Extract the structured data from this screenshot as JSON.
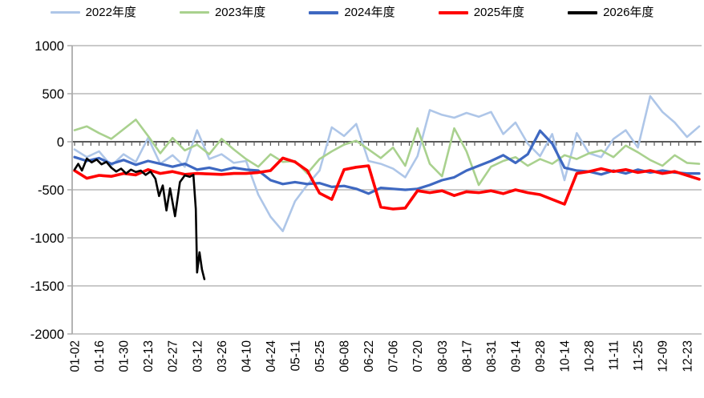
{
  "chart_data": {
    "type": "line",
    "title": "",
    "xlabel": "",
    "ylabel": "",
    "x_axis_labels": [
      "01-02",
      "01-16",
      "01-30",
      "02-13",
      "02-27",
      "03-12",
      "03-26",
      "04-10",
      "04-24",
      "05-11",
      "05-25",
      "06-08",
      "06-22",
      "07-06",
      "07-20",
      "08-03",
      "08-17",
      "08-31",
      "09-14",
      "09-28",
      "10-14",
      "10-28",
      "11-11",
      "11-25",
      "12-09",
      "12-23"
    ],
    "x_unit": "label-index (0 = 01-02, one unit = one tick, values sampled every 0.5)",
    "ylim": [
      -2000,
      1000
    ],
    "yticks": [
      1000,
      500,
      0,
      -500,
      -1000,
      -1500,
      -2000
    ],
    "grid": true,
    "zero_axis_color": "#595959",
    "grid_color": "#ababab",
    "legend_position": "top",
    "series": [
      {
        "name": "2022年度",
        "color": "#AEC6E8",
        "values": [
          -80,
          -160,
          -100,
          -250,
          -130,
          -210,
          40,
          -230,
          -140,
          -260,
          120,
          -180,
          -130,
          -220,
          -200,
          -550,
          -780,
          -930,
          -620,
          -450,
          -300,
          150,
          60,
          185,
          -200,
          -230,
          -280,
          -370,
          -150,
          330,
          280,
          250,
          300,
          260,
          310,
          80,
          200,
          -20,
          -150,
          80,
          -400,
          90,
          -120,
          -160,
          30,
          120,
          -60,
          475,
          310,
          200,
          50,
          160
        ]
      },
      {
        "name": "2023年度",
        "color": "#A9D18E",
        "values": [
          120,
          160,
          90,
          30,
          130,
          230,
          60,
          -120,
          40,
          -90,
          -30,
          -130,
          30,
          -80,
          -180,
          -260,
          -130,
          -210,
          -200,
          -330,
          -180,
          -100,
          -30,
          10,
          -80,
          -170,
          -60,
          -250,
          140,
          -230,
          -360,
          140,
          -100,
          -450,
          -260,
          -200,
          -160,
          -250,
          -180,
          -230,
          -140,
          -180,
          -120,
          -90,
          -160,
          -40,
          -110,
          -190,
          -250,
          -140,
          -220,
          -230
        ]
      },
      {
        "name": "2024年度",
        "color": "#3E68C1",
        "values": [
          -160,
          -200,
          -170,
          -230,
          -190,
          -240,
          -200,
          -230,
          -260,
          -230,
          -290,
          -270,
          -300,
          -270,
          -290,
          -300,
          -400,
          -440,
          -420,
          -440,
          -430,
          -470,
          -460,
          -490,
          -540,
          -480,
          -490,
          -500,
          -490,
          -450,
          -400,
          -370,
          -300,
          -250,
          -200,
          -140,
          -220,
          -130,
          115,
          -20,
          -270,
          -300,
          -310,
          -340,
          -300,
          -330,
          -290,
          -320,
          -300,
          -320,
          -330,
          -330
        ]
      },
      {
        "name": "2025年度",
        "color": "#FF0000",
        "values": [
          -300,
          -380,
          -350,
          -360,
          -330,
          -345,
          -290,
          -330,
          -310,
          -340,
          -330,
          -335,
          -340,
          -330,
          -330,
          -320,
          -300,
          -170,
          -210,
          -300,
          -535,
          -600,
          -290,
          -265,
          -250,
          -680,
          -700,
          -690,
          -510,
          -530,
          -510,
          -560,
          -520,
          -530,
          -510,
          -540,
          -500,
          -530,
          -550,
          -600,
          -650,
          -330,
          -310,
          -280,
          -310,
          -290,
          -320,
          -300,
          -330,
          -310,
          -350,
          -390
        ]
      },
      {
        "name": "2026年度",
        "color": "#000000",
        "points": [
          [
            0,
            -290
          ],
          [
            0.15,
            -230
          ],
          [
            0.3,
            -300
          ],
          [
            0.5,
            -175
          ],
          [
            0.7,
            -215
          ],
          [
            0.9,
            -185
          ],
          [
            1.1,
            -235
          ],
          [
            1.3,
            -210
          ],
          [
            1.5,
            -270
          ],
          [
            1.7,
            -310
          ],
          [
            1.9,
            -280
          ],
          [
            2.1,
            -330
          ],
          [
            2.3,
            -290
          ],
          [
            2.5,
            -315
          ],
          [
            2.7,
            -300
          ],
          [
            2.9,
            -345
          ],
          [
            3.1,
            -310
          ],
          [
            3.3,
            -385
          ],
          [
            3.45,
            -565
          ],
          [
            3.6,
            -455
          ],
          [
            3.75,
            -715
          ],
          [
            3.9,
            -485
          ],
          [
            4.1,
            -775
          ],
          [
            4.3,
            -420
          ],
          [
            4.5,
            -350
          ],
          [
            4.7,
            -365
          ],
          [
            4.85,
            -345
          ],
          [
            4.95,
            -700
          ],
          [
            5.0,
            -1360
          ],
          [
            5.1,
            -1150
          ],
          [
            5.2,
            -1330
          ],
          [
            5.3,
            -1430
          ]
        ]
      }
    ]
  }
}
